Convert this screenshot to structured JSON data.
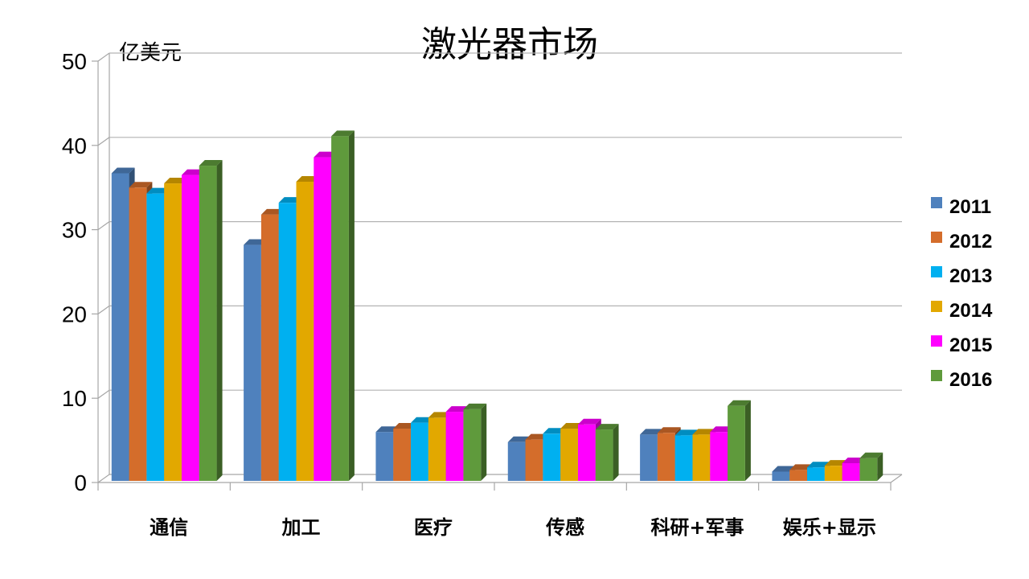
{
  "chart_data": {
    "type": "bar",
    "title": "激光器市场",
    "unit_label": "亿美元",
    "categories": [
      "通信",
      "加工",
      "医疗",
      "传感",
      "科研+军事",
      "娱乐+显示"
    ],
    "series": [
      {
        "name": "2011",
        "color": "#4f81bd",
        "values": [
          36.5,
          28,
          5.8,
          4.6,
          5.5,
          1.1
        ]
      },
      {
        "name": "2012",
        "color": "#d46d2b",
        "values": [
          34.8,
          31.6,
          6.2,
          4.9,
          5.7,
          1.3
        ]
      },
      {
        "name": "2013",
        "color": "#00b0f0",
        "values": [
          34.1,
          33,
          6.9,
          5.6,
          5.4,
          1.6
        ]
      },
      {
        "name": "2014",
        "color": "#e2a800",
        "values": [
          35.3,
          35.5,
          7.5,
          6.2,
          5.5,
          1.8
        ]
      },
      {
        "name": "2015",
        "color": "#ff00ff",
        "values": [
          36.3,
          38.4,
          8.2,
          6.7,
          5.8,
          2.1
        ]
      },
      {
        "name": "2016",
        "color": "#5f9a3c",
        "values": [
          37.4,
          40.9,
          8.5,
          6.1,
          8.9,
          2.7
        ]
      }
    ],
    "ylim": [
      0,
      50
    ],
    "yticks": [
      "0",
      "10",
      "20",
      "30",
      "40",
      "50"
    ],
    "legend_position": "right",
    "grid": true
  }
}
